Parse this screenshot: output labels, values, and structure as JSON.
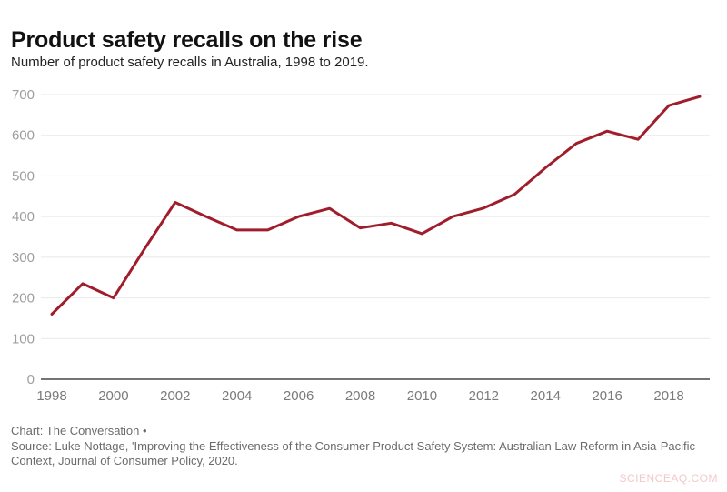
{
  "header": {
    "title": "Product safety recalls on the rise",
    "subtitle": "Number of product safety recalls in Australia, 1998 to 2019."
  },
  "chart_data": {
    "type": "line",
    "title": "Product safety recalls on the rise",
    "subtitle": "Number of product safety recalls in Australia, 1998 to 2019.",
    "x": [
      1998,
      1999,
      2000,
      2001,
      2002,
      2003,
      2004,
      2005,
      2006,
      2007,
      2008,
      2009,
      2010,
      2011,
      2012,
      2013,
      2014,
      2015,
      2016,
      2017,
      2018,
      2019
    ],
    "series": [
      {
        "name": "Number of product safety recalls",
        "values": [
          160,
          235,
          200,
          320,
          435,
          400,
          367,
          367,
          400,
          420,
          372,
          384,
          358,
          400,
          421,
          455,
          520,
          580,
          610,
          590,
          673,
          695
        ]
      }
    ],
    "xlabel": "",
    "ylabel": "",
    "ylim": [
      0,
      700
    ],
    "yticks": [
      0,
      100,
      200,
      300,
      400,
      500,
      600,
      700
    ],
    "xticks": [
      1998,
      2000,
      2002,
      2004,
      2006,
      2008,
      2010,
      2012,
      2014,
      2016,
      2018
    ],
    "grid": true,
    "legend": false,
    "line_color": "#a01e2c"
  },
  "colors": {
    "line": "#a01e2c",
    "grid": "#e8e8e8",
    "axis": "#474747",
    "ytick_label": "#9e9e9e",
    "xtick_label": "#7a7a7a",
    "watermark": "#f1c9c9"
  },
  "footer": {
    "credit": "Chart: The Conversation •",
    "source": "Source: Luke Nottage, 'Improving the Effectiveness of the Consumer Product Safety System: Australian Law Reform in Asia-Pacific Context, Journal of Consumer Policy, 2020.",
    "watermark": "SCIENCEAQ.COM"
  }
}
